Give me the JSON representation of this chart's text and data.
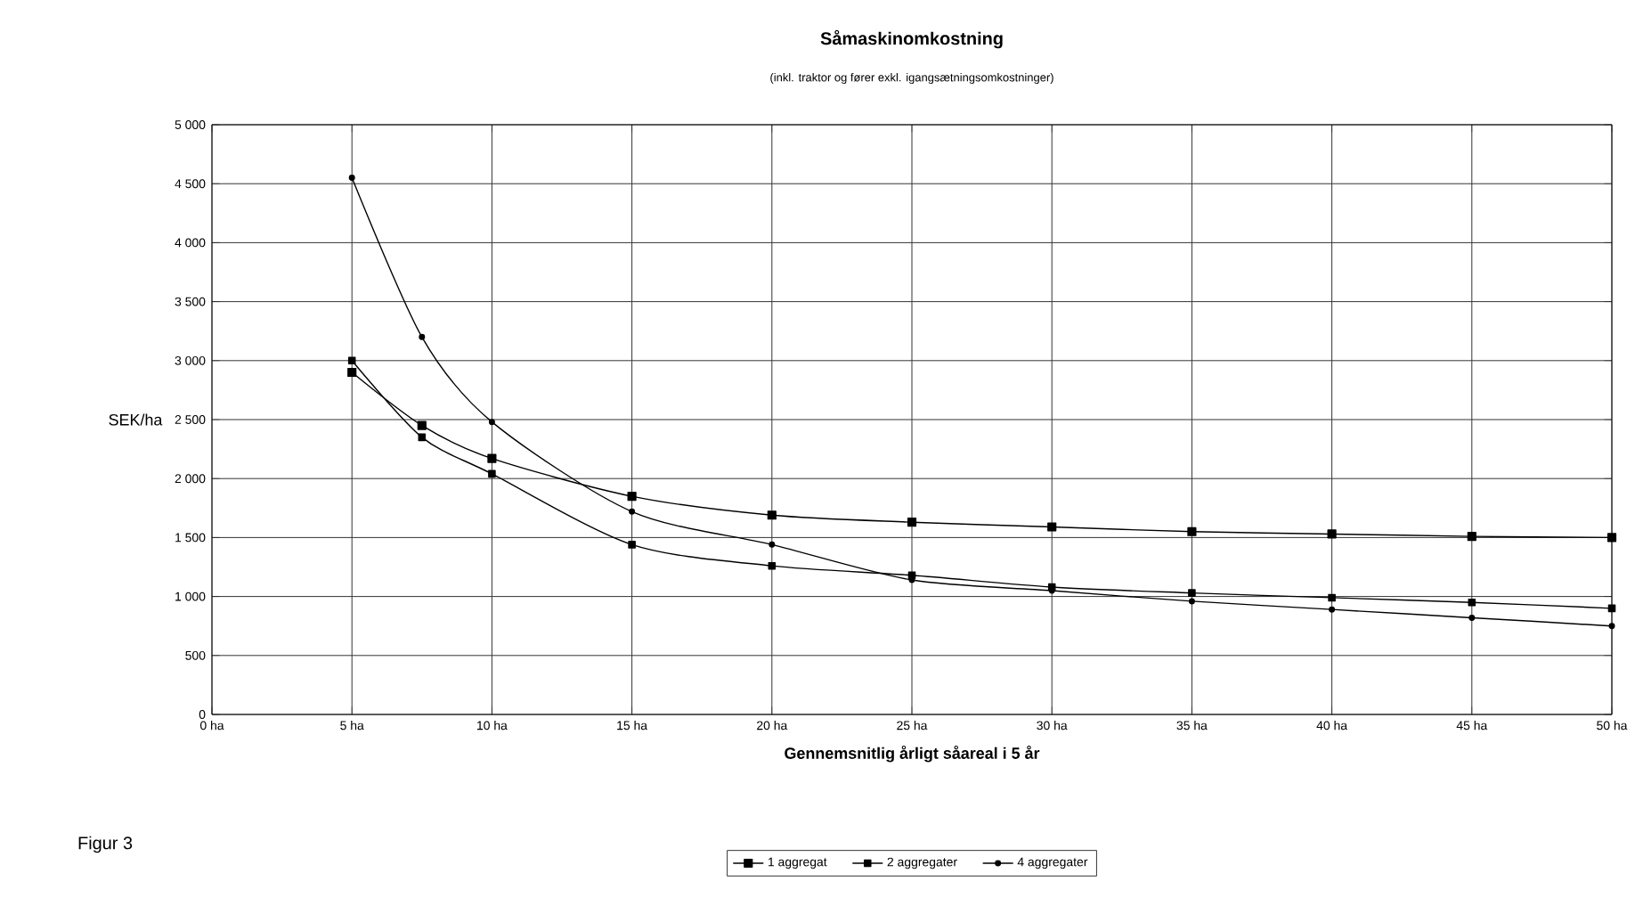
{
  "chart_data": {
    "type": "line",
    "title": "Såmaskinomkostning",
    "subtitle": "(inkl. traktor og fører exkl. igangsætningsomkostninger)",
    "xlabel": "Gennemsnitlig årligt såareal i 5 år",
    "ylabel": "SEK/ha",
    "annotations": [
      "Figur 3"
    ],
    "x": [
      5,
      7.5,
      10,
      15,
      20,
      25,
      30,
      35,
      40,
      45,
      50
    ],
    "series": [
      {
        "name": "1 aggregat",
        "color": "#000000",
        "marker": "square",
        "values": [
          2900,
          2450,
          2170,
          1850,
          1690,
          1630,
          1590,
          1550,
          1530,
          1510,
          1500
        ]
      },
      {
        "name": "2 aggregater",
        "color": "#000000",
        "marker": "square",
        "values": [
          3000,
          2350,
          2040,
          1440,
          1260,
          1180,
          1080,
          1030,
          990,
          950,
          900
        ]
      },
      {
        "name": "4 aggregater",
        "color": "#000000",
        "marker": "circle",
        "values": [
          4550,
          3200,
          2480,
          1720,
          1440,
          1140,
          1050,
          960,
          890,
          820,
          750
        ]
      }
    ],
    "xlim": [
      0,
      50
    ],
    "ylim": [
      0,
      5000
    ],
    "xticks": [
      {
        "value": 0,
        "label": "0 ha"
      },
      {
        "value": 5,
        "label": "5 ha"
      },
      {
        "value": 10,
        "label": "10 ha"
      },
      {
        "value": 15,
        "label": "15 ha"
      },
      {
        "value": 20,
        "label": "20 ha"
      },
      {
        "value": 25,
        "label": "25 ha"
      },
      {
        "value": 30,
        "label": "30 ha"
      },
      {
        "value": 35,
        "label": "35 ha"
      },
      {
        "value": 40,
        "label": "40 ha"
      },
      {
        "value": 45,
        "label": "45 ha"
      },
      {
        "value": 50,
        "label": "50 ha"
      }
    ],
    "yticks": [
      0,
      500,
      {
        "value": 1000,
        "label": "1 000"
      },
      {
        "value": 1500,
        "label": "1 500"
      },
      {
        "value": 2000,
        "label": "2 000"
      },
      {
        "value": 2500,
        "label": "2 500"
      },
      {
        "value": 3000,
        "label": "3 000"
      },
      {
        "value": 3500,
        "label": "3 500"
      },
      {
        "value": 4000,
        "label": "4 000"
      },
      {
        "value": 4500,
        "label": "4 500"
      },
      {
        "value": 5000,
        "label": "5 000"
      }
    ],
    "grid": true,
    "legend": "bottom"
  }
}
